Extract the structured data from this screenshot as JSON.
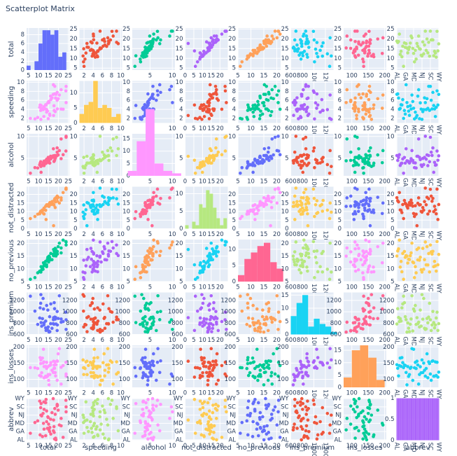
{
  "chart_data": {
    "type": "scatter_matrix",
    "title": "Scatterplot Matrix",
    "colors": [
      "#636efa",
      "#EF553B",
      "#00cc96",
      "#ab63fa",
      "#FFA15A",
      "#19d3f3",
      "#FF6692",
      "#B6E880",
      "#FF97FF",
      "#FECB52"
    ],
    "background": "#e5ecf6",
    "grid": true,
    "dimensions": [
      {
        "name": "total",
        "values": [
          18.8,
          18.1,
          18.6,
          22.4,
          12.0,
          13.6,
          10.8,
          16.2,
          5.9,
          17.9,
          15.6,
          17.5,
          15.3,
          12.8,
          14.5,
          15.7,
          17.8,
          21.4,
          20.5,
          15.1,
          12.5,
          8.2,
          14.1,
          9.6,
          17.6,
          16.1,
          21.4,
          14.9,
          14.7,
          11.6,
          11.2,
          18.4,
          12.3,
          16.8,
          23.9,
          14.1,
          19.9,
          12.8,
          18.2,
          11.1,
          23.9,
          19.4,
          19.5,
          19.4,
          11.3,
          13.6,
          12.7,
          10.6,
          23.8,
          13.8,
          17.4
        ],
        "lim": [
          4,
          25.5
        ],
        "ticks": [
          5,
          10,
          15,
          20,
          25
        ],
        "bin_size": 2,
        "hist_ylim": [
          0,
          9.5
        ],
        "hist_ticks": [
          0,
          2,
          4,
          6,
          8
        ]
      },
      {
        "name": "speeding",
        "values": [
          7.332,
          7.421,
          6.51,
          4.032,
          4.2,
          5.032,
          4.968,
          6.156,
          2.006,
          3.759,
          2.964,
          9.45,
          5.508,
          4.608,
          3.625,
          2.669,
          4.806,
          4.066,
          7.175,
          5.738,
          4.25,
          1.886,
          3.384,
          2.208,
          2.64,
          6.923,
          8.346,
          1.937,
          5.439,
          4.06,
          1.792,
          3.496,
          3.936,
          6.552,
          5.497,
          3.948,
          6.368,
          4.224,
          9.1,
          3.774,
          9.082,
          6.014,
          4.095,
          7.76,
          4.859,
          4.08,
          2.413,
          4.452,
          8.092,
          4.968,
          7.308
        ],
        "lim": [
          1,
          10.3
        ],
        "ticks": [
          2,
          4,
          6,
          8,
          10
        ],
        "bin_size": 1,
        "hist_ylim": [
          0,
          14
        ],
        "hist_ticks": [
          0,
          5,
          10
        ]
      },
      {
        "name": "alcohol",
        "values": [
          5.64,
          4.525,
          5.208,
          5.824,
          3.36,
          3.808,
          3.888,
          4.86,
          1.593,
          5.191,
          3.9,
          7.175,
          4.437,
          4.352,
          4.205,
          3.925,
          4.272,
          4.922,
          6.765,
          4.53,
          4,
          2.87,
          3.948,
          2.784,
          5.456,
          5.474,
          9.416,
          5.215,
          4.704,
          3.48,
          3.136,
          4.968,
          3.567,
          5.208,
          10.038,
          4.794,
          5.771,
          3.328,
          5.642,
          4.218,
          9.799,
          6.402,
          5.655,
          7.372,
          1.808,
          4.08,
          3.429,
          3.498,
          6.664,
          4.554,
          5.568
        ],
        "lim": [
          1,
          10.6
        ],
        "ticks": [
          5,
          10
        ],
        "bin_size": 2,
        "hist_ylim": [
          0,
          17
        ],
        "hist_ticks": [
          0,
          5,
          10,
          15
        ]
      },
      {
        "name": "not_distracted",
        "values": [
          18.048,
          16.29,
          15.624,
          21.056,
          10.92,
          10.744,
          9.396,
          14.094,
          5.9,
          16.468,
          14.82,
          14.35,
          13.005,
          12.032,
          13.775,
          15.229,
          13.706,
          16.692,
          14.965,
          13.137,
          8.875,
          7.134,
          13.395,
          8.448,
          1.76,
          14.812,
          17.976,
          13.857,
          13.965,
          10.092,
          9.632,
          12.328,
          10.824,
          15.792,
          23.661,
          13.959,
          18.308,
          8.576,
          17.472,
          10.212,
          22.944,
          19.012,
          15.99,
          17.654,
          9.944,
          13.056,
          11.049,
          8.692,
          23.086,
          5.382,
          14.094
        ],
        "lim": [
          0,
          24.5
        ],
        "ticks": [
          0,
          5,
          10,
          15,
          20
        ],
        "bin_size": 2,
        "hist_ylim": [
          0,
          12
        ],
        "hist_ticks": [
          0,
          5,
          10
        ]
      },
      {
        "name": "no_previous",
        "values": [
          15.04,
          17.014,
          17.856,
          21.28,
          10.68,
          12.92,
          8.856,
          16.038,
          5.9,
          16.826,
          14.508,
          15.225,
          14.994,
          12.288,
          13.775,
          13.659,
          15.13,
          16.264,
          20.09,
          12.684,
          12.375,
          6.56,
          10.857,
          8.448,
          17.6,
          13.524,
          18.19,
          13.41,
          14.553,
          9.628,
          8.736,
          18.032,
          9.84,
          13.608,
          20.554,
          11.562,
          18.706,
          11.52,
          16.016,
          8.769,
          19.359,
          16.684,
          15.795,
          16.878,
          10.848,
          12.92,
          11.176,
          9.116,
          20.706,
          11.592,
          15.66
        ],
        "lim": [
          5,
          21.5
        ],
        "ticks": [
          5,
          10,
          15,
          20
        ],
        "bin_size": 2.5,
        "hist_ylim": [
          0,
          13
        ],
        "hist_ticks": [
          0,
          5,
          10
        ]
      },
      {
        "name": "ins_premium",
        "values": [
          784.55,
          1053.48,
          899.47,
          827.34,
          878.41,
          835.5,
          1068.73,
          1137.87,
          1273.89,
          1160.13,
          913.15,
          861.18,
          641.96,
          803.11,
          710.46,
          649.06,
          780.45,
          872.51,
          1281.55,
          661.88,
          1048.78,
          1011.14,
          1110.61,
          777.18,
          896.07,
          790.32,
          816.21,
          732.28,
          1029.87,
          746.54,
          1301.52,
          869.85,
          1234.31,
          708.24,
          688.75,
          697.73,
          881.51,
          804.71,
          905.99,
          1148.99,
          858.97,
          669.31,
          767.91,
          1004.75,
          809.38,
          716.2,
          768.95,
          890.03,
          992.61,
          670.31,
          791.14
        ],
        "lim": [
          600,
          1340
        ],
        "ticks": [
          600,
          800,
          1000,
          1200
        ],
        "bin_size": 100,
        "hist_ylim": [
          0,
          16
        ],
        "hist_ticks": [
          0,
          5,
          10,
          15
        ]
      },
      {
        "name": "ins_losses",
        "values": [
          145.08,
          133.93,
          110.35,
          142.39,
          165.63,
          139.91,
          167.02,
          151.48,
          136.05,
          144.18,
          142.8,
          120.92,
          82.75,
          139.15,
          108.92,
          114.47,
          133.8,
          137.13,
          194.78,
          96.57,
          192.7,
          135.63,
          152.26,
          133.35,
          155.77,
          144.45,
          85.15,
          114.82,
          138.71,
          120.21,
          159.85,
          120.75,
          150.01,
          127.82,
          109.72,
          133.52,
          178.86,
          104.61,
          153.86,
          148.58,
          116.29,
          96.87,
          155.57,
          156.83,
          109.48,
          109.61,
          153.72,
          111.62,
          152.56,
          106.62,
          122.04
        ],
        "lim": [
          75,
          205
        ],
        "ticks": [
          100,
          150,
          200
        ],
        "bin_size": 25,
        "hist_ylim": [
          0,
          17
        ],
        "hist_ticks": [
          0,
          5,
          10,
          15
        ]
      },
      {
        "name": "abbrev",
        "values": [
          "AL",
          "AK",
          "AZ",
          "AR",
          "CA",
          "CO",
          "CT",
          "DE",
          "DC",
          "FL",
          "GA",
          "HI",
          "ID",
          "IL",
          "IN",
          "IA",
          "KS",
          "KY",
          "LA",
          "ME",
          "MD",
          "MA",
          "MI",
          "MN",
          "MS",
          "MO",
          "MT",
          "NE",
          "NV",
          "NH",
          "NJ",
          "NM",
          "NY",
          "NC",
          "ND",
          "OH",
          "OK",
          "OR",
          "PA",
          "RI",
          "SC",
          "SD",
          "TN",
          "TX",
          "UT",
          "VT",
          "VA",
          "WA",
          "WV",
          "WI",
          "WY"
        ],
        "ticks": [
          "AL",
          "GA",
          "MD",
          "NJ",
          "SC",
          "WY"
        ],
        "hist_ylim": [
          0,
          1
        ],
        "hist_ticks": [
          0,
          0.5,
          1
        ]
      }
    ]
  }
}
